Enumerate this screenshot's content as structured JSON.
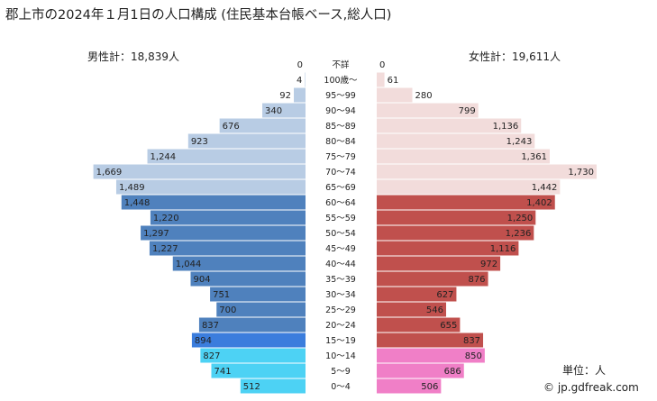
{
  "title": "郡上市の2024年１月1日の人口構成 (住民基本台帳ベース,総人口)",
  "male_total_label": "男性計：18,839人",
  "female_total_label": "女性計：19,611人",
  "unit_label": "単位：人",
  "credit": "© jp.gdfreak.com",
  "colors": {
    "male_elderly": "#b8cce4",
    "male_working": "#4f81bd",
    "male_youth": "#4dd2f4",
    "male_15_19": "#3b7ddd",
    "female_elderly": "#f2dcdb",
    "female_working": "#c0504d",
    "female_youth": "#f07fc7"
  },
  "chart_data": {
    "type": "bar",
    "orientation": "horizontal-pyramid",
    "categories": [
      "不詳",
      "100歳～",
      "95～99",
      "90～94",
      "85～89",
      "80～84",
      "75～79",
      "70～74",
      "65～69",
      "60～64",
      "55～59",
      "50～54",
      "45～49",
      "40～44",
      "35～39",
      "30～34",
      "25～29",
      "20～24",
      "15～19",
      "10～14",
      "5～9",
      "0～4"
    ],
    "series": [
      {
        "name": "男性",
        "values": [
          0,
          4,
          92,
          340,
          676,
          923,
          1244,
          1669,
          1489,
          1448,
          1220,
          1297,
          1227,
          1044,
          904,
          751,
          700,
          837,
          894,
          827,
          741,
          512
        ]
      },
      {
        "name": "女性",
        "values": [
          0,
          61,
          280,
          799,
          1136,
          1243,
          1361,
          1730,
          1442,
          1402,
          1250,
          1236,
          1116,
          972,
          876,
          627,
          546,
          655,
          837,
          850,
          686,
          506
        ]
      }
    ],
    "value_labels": {
      "male": [
        "0",
        "4",
        "92",
        "340",
        "676",
        "923",
        "1,244",
        "1,669",
        "1,489",
        "1,448",
        "1,220",
        "1,297",
        "1,227",
        "1,044",
        "904",
        "751",
        "700",
        "837",
        "894",
        "827",
        "741",
        "512"
      ],
      "female": [
        "0",
        "61",
        "280",
        "799",
        "1,136",
        "1,243",
        "1,361",
        "1,730",
        "1,442",
        "1,402",
        "1,250",
        "1,236",
        "1,116",
        "972",
        "876",
        "627",
        "546",
        "655",
        "837",
        "850",
        "686",
        "506"
      ]
    },
    "xlim": [
      0,
      1730
    ],
    "grid": false
  }
}
